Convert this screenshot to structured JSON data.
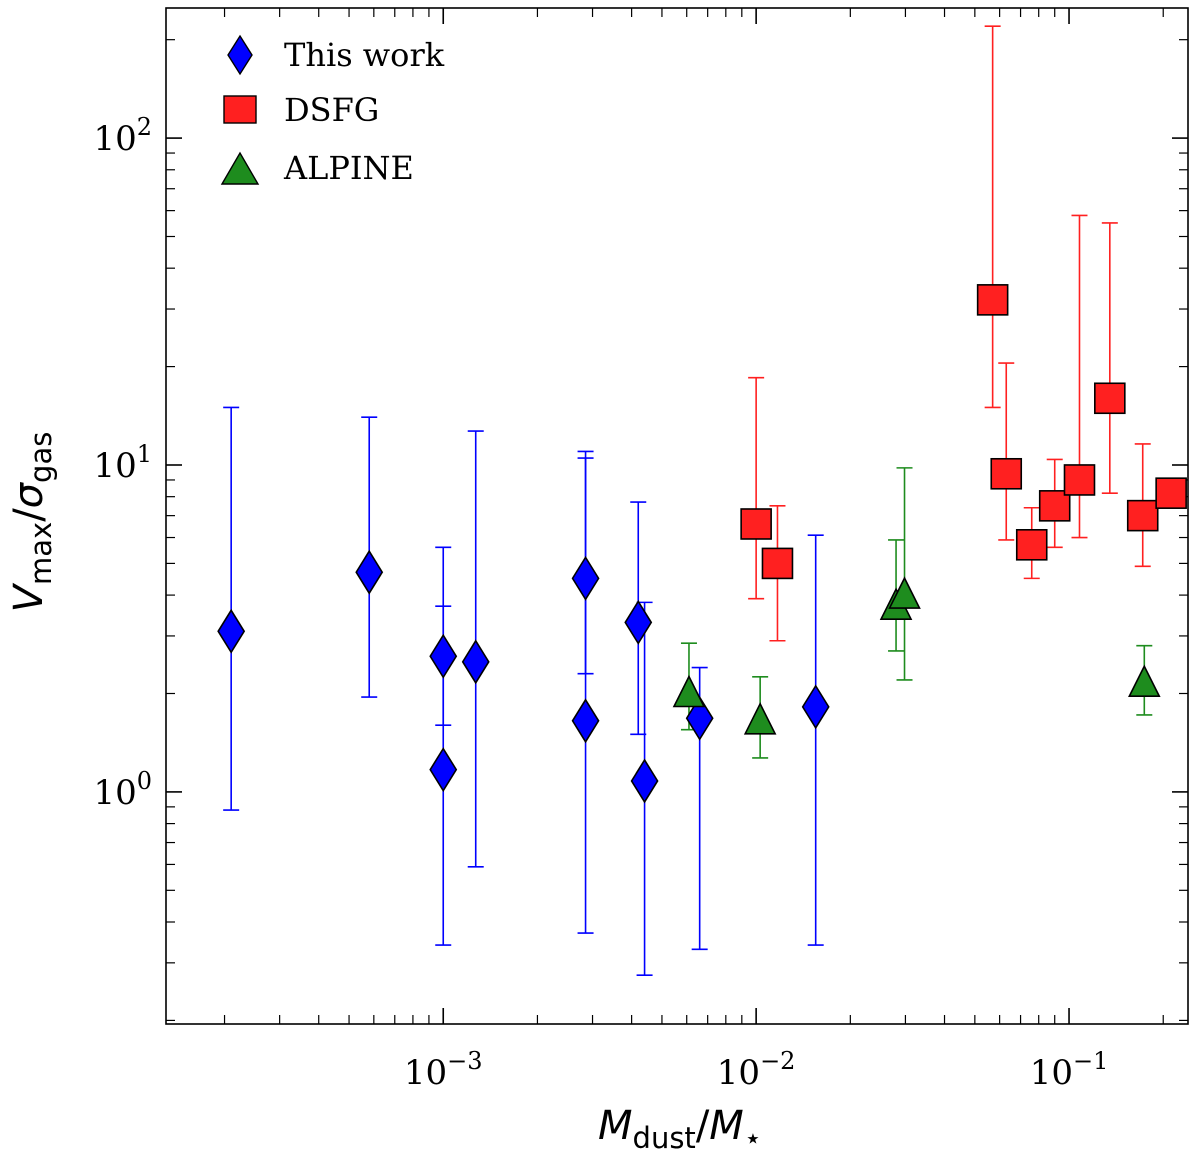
{
  "chart_data": {
    "type": "scatter",
    "title": "",
    "xlabel": {
      "main": "M",
      "main_sub": "dust",
      "sep": "/",
      "denom": "M",
      "denom_sub": "⋆"
    },
    "ylabel": {
      "main": "V",
      "main_sub": "max",
      "sep": "/",
      "denom": "σ",
      "denom_sub": "gas"
    },
    "xscale": "log",
    "yscale": "log",
    "xlim": [
      0.00013,
      0.24
    ],
    "ylim": [
      0.195,
      250
    ],
    "x_ticks": [
      {
        "value": 0.001,
        "base": "10",
        "exp": "−3"
      },
      {
        "value": 0.01,
        "base": "10",
        "exp": "−2"
      },
      {
        "value": 0.1,
        "base": "10",
        "exp": "−1"
      }
    ],
    "y_ticks": [
      {
        "value": 1,
        "base": "10",
        "exp": "0"
      },
      {
        "value": 10,
        "base": "10",
        "exp": "1"
      },
      {
        "value": 100,
        "base": "10",
        "exp": "2"
      }
    ],
    "legend_position": "top-left",
    "series": [
      {
        "name": "This work",
        "marker": "diamond",
        "color": "#0000ff",
        "points": [
          {
            "x": 0.00021,
            "y": 3.1,
            "ylo": 0.88,
            "yhi": 15.0
          },
          {
            "x": 0.00058,
            "y": 4.7,
            "ylo": 1.95,
            "yhi": 14.0
          },
          {
            "x": 0.001,
            "y": 2.6,
            "ylo": 1.6,
            "yhi": 5.6
          },
          {
            "x": 0.001,
            "y": 1.17,
            "ylo": 0.34,
            "yhi": 3.7
          },
          {
            "x": 0.00127,
            "y": 2.5,
            "ylo": 0.59,
            "yhi": 12.7
          },
          {
            "x": 0.00285,
            "y": 4.5,
            "ylo": 2.3,
            "yhi": 10.5
          },
          {
            "x": 0.00285,
            "y": 1.65,
            "ylo": 0.37,
            "yhi": 11.0
          },
          {
            "x": 0.0042,
            "y": 3.3,
            "ylo": 1.5,
            "yhi": 7.7
          },
          {
            "x": 0.0044,
            "y": 1.08,
            "ylo": 0.275,
            "yhi": 3.8
          },
          {
            "x": 0.0066,
            "y": 1.68,
            "ylo": 0.33,
            "yhi": 2.4
          },
          {
            "x": 0.0155,
            "y": 1.82,
            "ylo": 0.34,
            "yhi": 6.1
          }
        ]
      },
      {
        "name": "DSFG",
        "marker": "square",
        "color": "#ff2020",
        "points": [
          {
            "x": 0.01,
            "y": 6.6,
            "ylo": 3.9,
            "yhi": 18.5
          },
          {
            "x": 0.0117,
            "y": 5.0,
            "ylo": 2.9,
            "yhi": 7.5
          },
          {
            "x": 0.057,
            "y": 32.0,
            "ylo": 15.0,
            "yhi": 220.0
          },
          {
            "x": 0.063,
            "y": 9.4,
            "ylo": 5.9,
            "yhi": 20.5
          },
          {
            "x": 0.076,
            "y": 5.7,
            "ylo": 4.5,
            "yhi": 7.4
          },
          {
            "x": 0.09,
            "y": 7.5,
            "ylo": 5.6,
            "yhi": 10.4
          },
          {
            "x": 0.108,
            "y": 9.0,
            "ylo": 6.0,
            "yhi": 58.0
          },
          {
            "x": 0.135,
            "y": 16.0,
            "ylo": 8.2,
            "yhi": 55.0
          },
          {
            "x": 0.172,
            "y": 7.0,
            "ylo": 4.9,
            "yhi": 11.6
          },
          {
            "x": 0.212,
            "y": 8.2,
            "ylo": 8.2,
            "yhi": 8.2
          }
        ]
      },
      {
        "name": "ALPINE",
        "marker": "triangle",
        "color": "#1e8c1e",
        "points": [
          {
            "x": 0.0061,
            "y": 2.0,
            "ylo": 1.55,
            "yhi": 2.85
          },
          {
            "x": 0.0103,
            "y": 1.65,
            "ylo": 1.27,
            "yhi": 2.25
          },
          {
            "x": 0.028,
            "y": 3.7,
            "ylo": 2.7,
            "yhi": 5.9
          },
          {
            "x": 0.0298,
            "y": 4.0,
            "ylo": 2.2,
            "yhi": 9.8
          },
          {
            "x": 0.174,
            "y": 2.15,
            "ylo": 1.72,
            "yhi": 2.8
          }
        ]
      }
    ]
  }
}
